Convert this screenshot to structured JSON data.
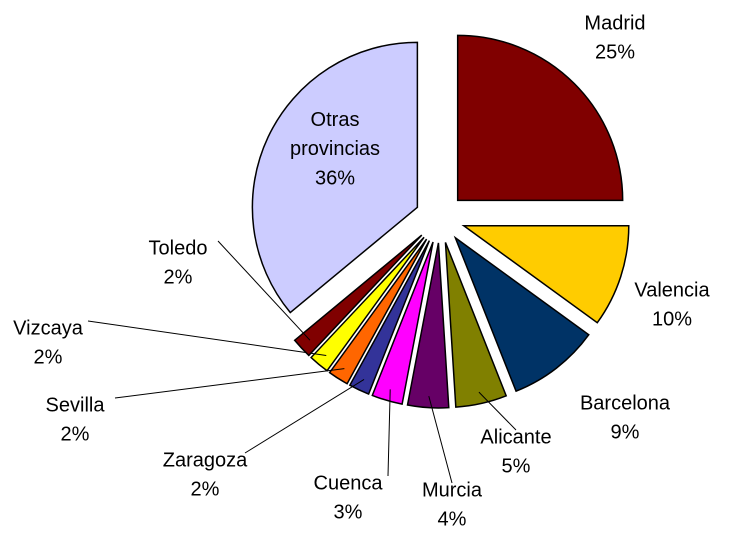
{
  "chart_data": {
    "type": "pie",
    "categories": [
      "Madrid",
      "Valencia",
      "Barcelona",
      "Alicante",
      "Murcia",
      "Cuenca",
      "Zaragoza",
      "Sevilla",
      "Vizcaya",
      "Toledo",
      "Otras provincias"
    ],
    "values": [
      25,
      10,
      9,
      5,
      4,
      3,
      2,
      2,
      2,
      2,
      36
    ],
    "value_labels": [
      "25%",
      "10%",
      "9%",
      "5%",
      "4%",
      "3%",
      "2%",
      "2%",
      "2%",
      "2%",
      "36%"
    ],
    "colors": [
      "#800000",
      "#ffcc00",
      "#003366",
      "#808000",
      "#660066",
      "#ff00ff",
      "#333399",
      "#ff6600",
      "#ffff00",
      "#800000",
      "#ccccff"
    ]
  }
}
